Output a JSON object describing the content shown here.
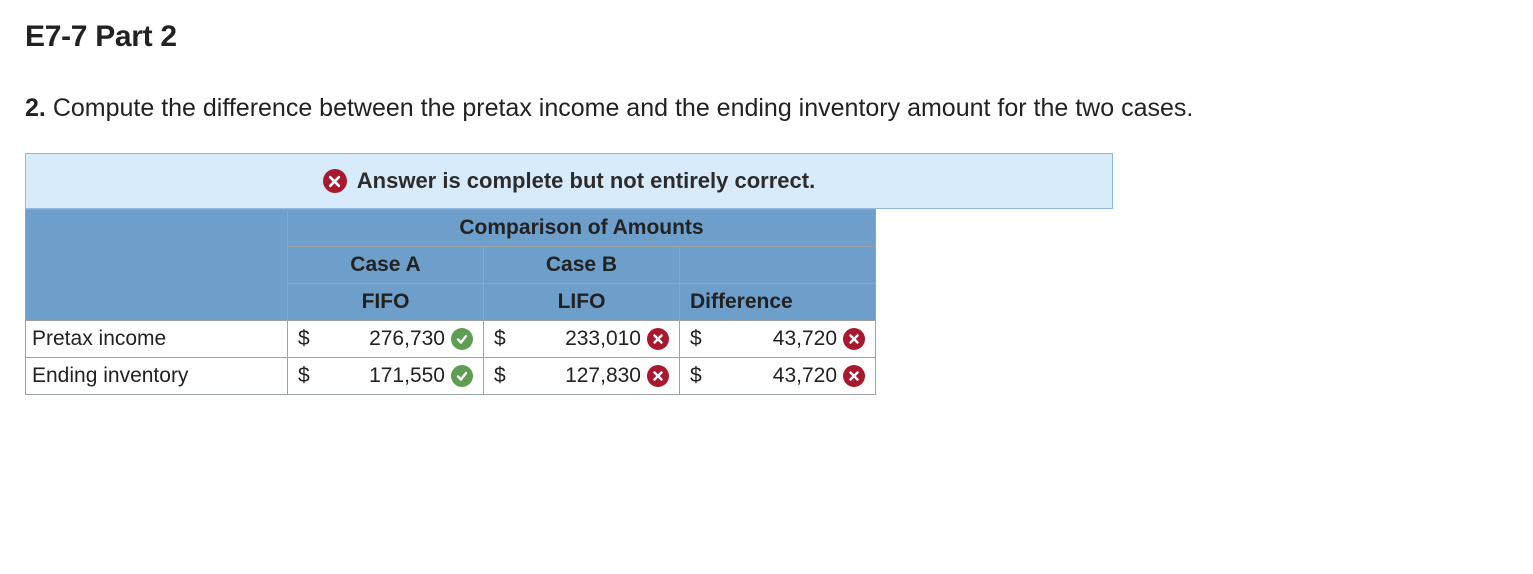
{
  "title": "E7-7 Part 2",
  "question_number": "2.",
  "question_text": "Compute the difference between the pretax income and the ending inventory amount for the two cases.",
  "banner": {
    "icon": "x-icon",
    "text": "Answer is complete but not entirely correct."
  },
  "table": {
    "super_header": "Comparison of Amounts",
    "cols": [
      {
        "case": "Case A",
        "method": "FIFO"
      },
      {
        "case": "Case B",
        "method": "LIFO"
      },
      {
        "case": "",
        "method": "Difference"
      }
    ],
    "rows": [
      {
        "label": "Pretax income",
        "cells": [
          {
            "currency": "$",
            "value": "276,730",
            "status": "correct"
          },
          {
            "currency": "$",
            "value": "233,010",
            "status": "incorrect"
          },
          {
            "currency": "$",
            "value": "43,720",
            "status": "incorrect"
          }
        ]
      },
      {
        "label": "Ending inventory",
        "cells": [
          {
            "currency": "$",
            "value": "171,550",
            "status": "correct"
          },
          {
            "currency": "$",
            "value": "127,830",
            "status": "incorrect"
          },
          {
            "currency": "$",
            "value": "43,720",
            "status": "incorrect"
          }
        ]
      }
    ]
  },
  "colors": {
    "banner_bg": "#d7ebfb",
    "banner_border": "#8fb9de",
    "header_bg": "#6e9fca",
    "cell_border": "#9ca3a8",
    "correct": "#5f9e52",
    "incorrect": "#a6192e"
  }
}
